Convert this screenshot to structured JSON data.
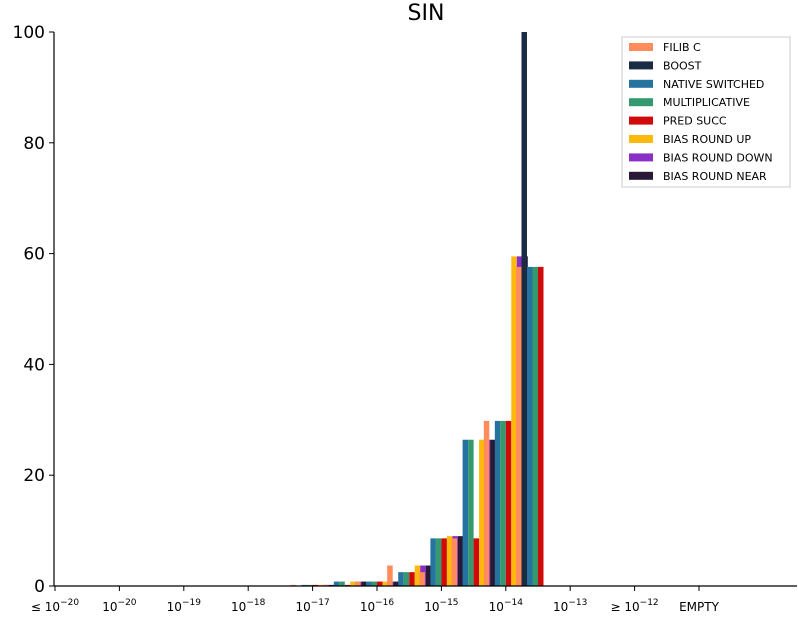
{
  "chart_data": {
    "type": "bar",
    "title": "SIN",
    "xlabel": "",
    "ylabel": "",
    "ylim": [
      0,
      100
    ],
    "yticks": [
      0,
      20,
      40,
      60,
      80,
      100
    ],
    "categories": [
      "≤10^-20",
      "10^-20",
      "10^-19",
      "10^-18",
      "10^-17",
      "10^-16",
      "10^-15",
      "10^-14",
      "10^-13",
      "≥10^-12",
      "EMPTY"
    ],
    "tick_labels": [
      {
        "prefix": "≤ ",
        "base": "10",
        "exp": "−20"
      },
      {
        "prefix": "",
        "base": "10",
        "exp": "−20"
      },
      {
        "prefix": "",
        "base": "10",
        "exp": "−19"
      },
      {
        "prefix": "",
        "base": "10",
        "exp": "−18"
      },
      {
        "prefix": "",
        "base": "10",
        "exp": "−17"
      },
      {
        "prefix": "",
        "base": "10",
        "exp": "−16"
      },
      {
        "prefix": "",
        "base": "10",
        "exp": "−15"
      },
      {
        "prefix": "",
        "base": "10",
        "exp": "−14"
      },
      {
        "prefix": "",
        "base": "10",
        "exp": "−13"
      },
      {
        "prefix": "≥ ",
        "base": "10",
        "exp": "−12"
      },
      {
        "prefix": "",
        "base": "EMPTY",
        "exp": ""
      }
    ],
    "legend_position": "top-right",
    "grid": false,
    "bar_groups": [
      {
        "x": 4.0,
        "values": [
          0.2,
          0,
          0.2,
          0.2,
          0.2,
          0.2,
          0.2,
          0.2
        ]
      },
      {
        "x": 4.5,
        "values": [
          0.2,
          0,
          0.8,
          0.8,
          0.2,
          0.8,
          0.8,
          0.8
        ]
      },
      {
        "x": 5.0,
        "values": [
          0.8,
          0,
          0.8,
          0.8,
          0.8,
          0.8,
          0.8,
          0.8
        ]
      },
      {
        "x": 5.5,
        "values": [
          3.7,
          0,
          2.5,
          2.5,
          2.5,
          3.7,
          3.7,
          3.7
        ]
      },
      {
        "x": 6.0,
        "values": [
          2.5,
          0,
          8.6,
          8.6,
          8.6,
          9.0,
          9.0,
          9.0
        ]
      },
      {
        "x": 6.5,
        "values": [
          8.6,
          0,
          26.4,
          26.4,
          8.6,
          26.4,
          26.4,
          26.4
        ]
      },
      {
        "x": 7.0,
        "values": [
          29.8,
          0,
          29.8,
          29.8,
          29.8,
          59.5,
          59.5,
          59.5
        ]
      },
      {
        "x": 7.5,
        "values": [
          57.6,
          100,
          57.6,
          57.6,
          57.6,
          0,
          0,
          0
        ]
      }
    ],
    "series": [
      {
        "name": "FILIB C",
        "color": "#ff8c5a"
      },
      {
        "name": "BOOST",
        "color": "#1c2b44"
      },
      {
        "name": "NATIVE SWITCHED",
        "color": "#2773a0"
      },
      {
        "name": "MULTIPLICATIVE",
        "color": "#34996e"
      },
      {
        "name": "PRED SUCC",
        "color": "#d00a0a"
      },
      {
        "name": "BIAS ROUND UP",
        "color": "#fdb90c"
      },
      {
        "name": "BIAS ROUND DOWN",
        "color": "#8a2ec8"
      },
      {
        "name": "BIAS ROUND NEAR",
        "color": "#281937"
      }
    ]
  }
}
